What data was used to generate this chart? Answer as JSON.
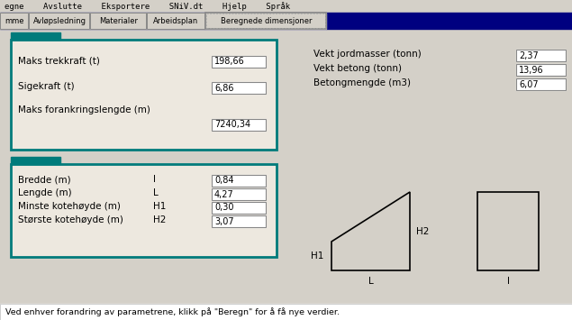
{
  "bg_color": "#d4d0c8",
  "tab_bar_bg": "#000080",
  "tab_labels": [
    "mme",
    "Avløpsledning",
    "Materialer",
    "Arbeidsplan",
    "Beregnede dimensjoner"
  ],
  "tab_active_index": 4,
  "menubar_text": "egne    Avslutte    Eksportere    SNiV.dt    Hjelp    Språk",
  "box1_labels": [
    "Maks trekkraft (t)",
    "Sigekraft (t)",
    "Maks forankringslengde (m)"
  ],
  "box1_values": [
    "198,66",
    "6,86",
    "7240,34"
  ],
  "right_labels": [
    "Vekt jordmasser (tonn)",
    "Vekt betong (tonn)",
    "Betongmengde (m3)"
  ],
  "right_values": [
    "2,37",
    "13,96",
    "6,07"
  ],
  "box2_labels": [
    "Bredde (m)",
    "Lengde (m)",
    "Minste kotehøyde (m)",
    "Største kotehøyde (m)"
  ],
  "box2_symbols": [
    "l",
    "L",
    "H1",
    "H2"
  ],
  "box2_values": [
    "0,84",
    "4,27",
    "0,30",
    "3,07"
  ],
  "footer_text": "Ved enhver forandring av parametrene, klikk på \"Beregn\" for å få nye verdier.",
  "teal_color": "#007b7b",
  "box_border_color": "#007b7b",
  "input_bg": "#ffffff",
  "text_color": "#000000",
  "box_fill": "#ede8df",
  "tab_x": [
    0,
    32,
    100,
    163,
    228,
    363
  ],
  "tab_w": [
    32,
    68,
    63,
    65,
    135,
    272
  ]
}
